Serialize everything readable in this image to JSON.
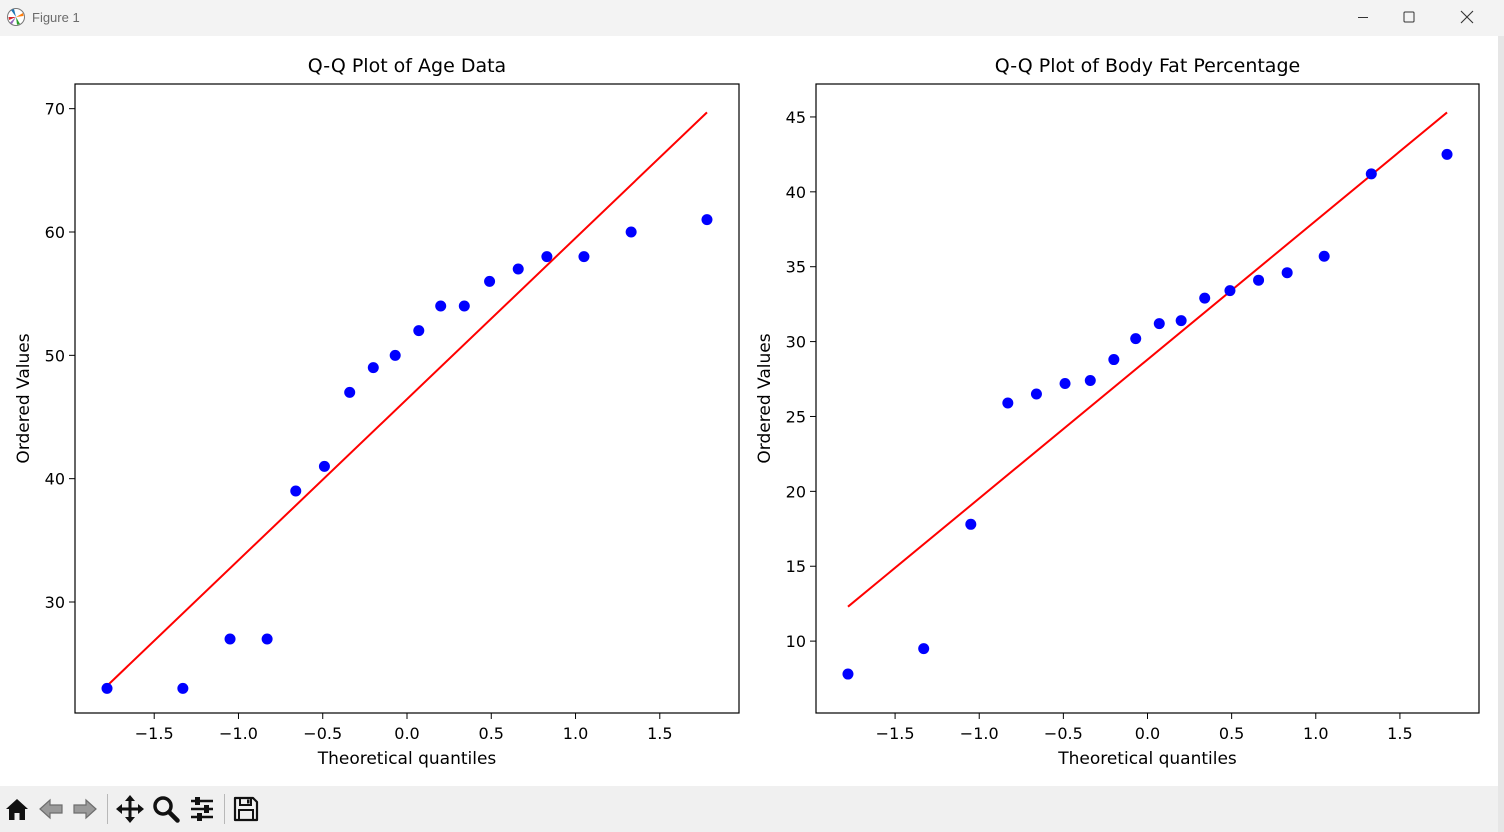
{
  "window": {
    "title": "Figure 1"
  },
  "toolbar": {
    "buttons": [
      {
        "name": "home-button",
        "icon": "home-icon"
      },
      {
        "name": "back-button",
        "icon": "arrow-left-icon"
      },
      {
        "name": "forward-button",
        "icon": "arrow-right-icon"
      },
      {
        "name": "pan-button",
        "icon": "move-icon"
      },
      {
        "name": "zoom-button",
        "icon": "magnifier-icon"
      },
      {
        "name": "configure-subplots-button",
        "icon": "sliders-icon"
      },
      {
        "name": "save-button",
        "icon": "floppy-disk-icon"
      }
    ]
  },
  "chart_data": [
    {
      "type": "scatter",
      "title": "Q-Q Plot of Age Data",
      "xlabel": "Theoretical quantiles",
      "ylabel": "Ordered Values",
      "xlim": [
        -1.97,
        1.97
      ],
      "ylim": [
        21.0,
        72.0
      ],
      "xticks": [
        -1.5,
        -1.0,
        -0.5,
        0.0,
        0.5,
        1.0,
        1.5
      ],
      "xtick_labels": [
        "−1.5",
        "−1.0",
        "−0.5",
        "0.0",
        "0.5",
        "1.0",
        "1.5"
      ],
      "yticks": [
        30,
        40,
        50,
        60,
        70
      ],
      "ytick_labels": [
        "30",
        "40",
        "50",
        "60",
        "70"
      ],
      "points": {
        "x": [
          -1.78,
          -1.33,
          -1.05,
          -0.83,
          -0.66,
          -0.49,
          -0.34,
          -0.2,
          -0.07,
          0.07,
          0.2,
          0.34,
          0.49,
          0.66,
          0.83,
          1.05,
          1.33,
          1.78
        ],
        "y": [
          23,
          23,
          27,
          27,
          39,
          41,
          47,
          49,
          50,
          52,
          54,
          54,
          56,
          57,
          58,
          58,
          60,
          61
        ],
        "color": "#0000ff"
      },
      "fit_line": {
        "x": [
          -1.78,
          1.78
        ],
        "y": [
          23.2,
          69.7
        ],
        "color": "#ff0000"
      },
      "grid": false
    },
    {
      "type": "scatter",
      "title": "Q-Q Plot of Body Fat Percentage",
      "xlabel": "Theoretical quantiles",
      "ylabel": "Ordered Values",
      "xlim": [
        -1.97,
        1.97
      ],
      "ylim": [
        5.2,
        47.2
      ],
      "xticks": [
        -1.5,
        -1.0,
        -0.5,
        0.0,
        0.5,
        1.0,
        1.5
      ],
      "xtick_labels": [
        "−1.5",
        "−1.0",
        "−0.5",
        "0.0",
        "0.5",
        "1.0",
        "1.5"
      ],
      "yticks": [
        10,
        15,
        20,
        25,
        30,
        35,
        40,
        45
      ],
      "ytick_labels": [
        "10",
        "15",
        "20",
        "25",
        "30",
        "35",
        "40",
        "45"
      ],
      "points": {
        "x": [
          -1.78,
          -1.33,
          -1.05,
          -0.83,
          -0.66,
          -0.49,
          -0.34,
          -0.2,
          -0.07,
          0.07,
          0.2,
          0.34,
          0.49,
          0.66,
          0.83,
          1.05,
          1.33,
          1.78
        ],
        "y": [
          7.8,
          9.5,
          17.8,
          25.9,
          26.5,
          27.2,
          27.4,
          28.8,
          30.2,
          31.2,
          31.4,
          32.9,
          33.4,
          34.1,
          34.6,
          35.7,
          41.2,
          42.5
        ],
        "color": "#0000ff"
      },
      "fit_line": {
        "x": [
          -1.78,
          1.78
        ],
        "y": [
          12.3,
          45.3
        ],
        "color": "#ff0000"
      },
      "grid": false
    }
  ]
}
